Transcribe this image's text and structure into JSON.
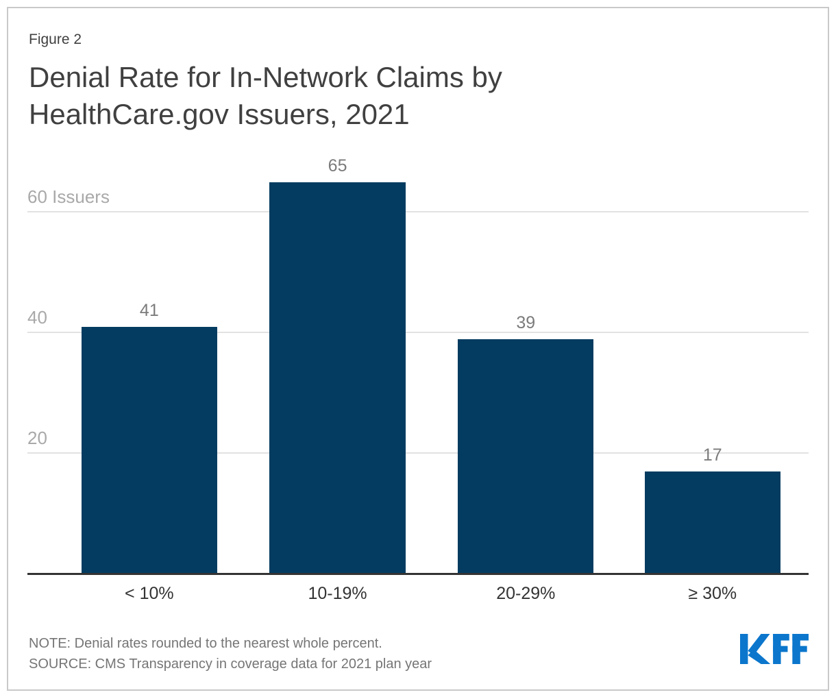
{
  "header": {
    "figure_label": "Figure 2",
    "title_lines": [
      "Denial Rate for In-Network Claims by",
      "HealthCare.gov Issuers, 2021"
    ]
  },
  "footer": {
    "note": "NOTE: Denial rates rounded to the nearest whole percent.",
    "source": "SOURCE: CMS Transparency in coverage data for 2021 plan year",
    "logo_text": "KFF"
  },
  "colors": {
    "bar": "#043C61",
    "kff_logo_blue": "#0B76CC",
    "gridline": "#E2E2E2",
    "axis_line": "#333333",
    "ytick_label": "#A9A9A9",
    "value_label": "#7B7B7B",
    "category_label": "#333333",
    "frame_border": "#C9C9C9",
    "title_text": "#404040",
    "note_text": "#757575"
  },
  "chart_data": {
    "type": "bar",
    "title": "Denial Rate for In-Network Claims by HealthCare.gov Issuers, 2021",
    "categories": [
      "< 10%",
      "10-19%",
      "20-29%",
      "≥ 30%"
    ],
    "values": [
      41,
      65,
      39,
      17
    ],
    "xlabel": "",
    "ylabel": "",
    "ylim": [
      0,
      70
    ],
    "yticks": [
      {
        "value": 20,
        "label": "20"
      },
      {
        "value": 40,
        "label": "40"
      },
      {
        "value": 60,
        "label": "60 Issuers"
      }
    ],
    "grid": true,
    "legend": false,
    "bar_color": "#043C61"
  }
}
